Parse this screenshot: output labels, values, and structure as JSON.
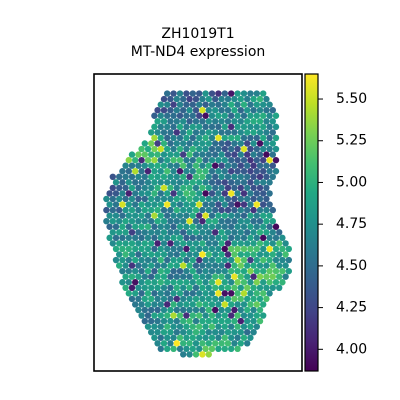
{
  "chart_data": {
    "type": "heatmap",
    "plot_kind": "spatial spot scatter (hexagonal spots)",
    "title": "ZH1019T1",
    "subtitle": "MT-ND4 expression",
    "xlabel": "",
    "ylabel": "",
    "colormap": "viridis",
    "color_range": [
      3.87,
      5.65
    ],
    "colorbar_ticks": [
      4.0,
      4.25,
      4.5,
      4.75,
      5.0,
      5.25,
      5.5
    ],
    "colorbar_tick_labels": [
      "4.00",
      "4.25",
      "4.50",
      "4.75",
      "5.00",
      "5.25",
      "5.50"
    ],
    "axes_ticks_visible": false,
    "grid": false,
    "value_summary": {
      "typical_range": [
        4.5,
        5.0
      ],
      "high_values_region": "bottom edge and upper-left corner (~5.4-5.6)",
      "low_values_region": "scattered dark spots along top and upper-middle (~3.9-4.2)"
    }
  },
  "colors": {
    "frame": "#000000",
    "background": "#ffffff"
  }
}
